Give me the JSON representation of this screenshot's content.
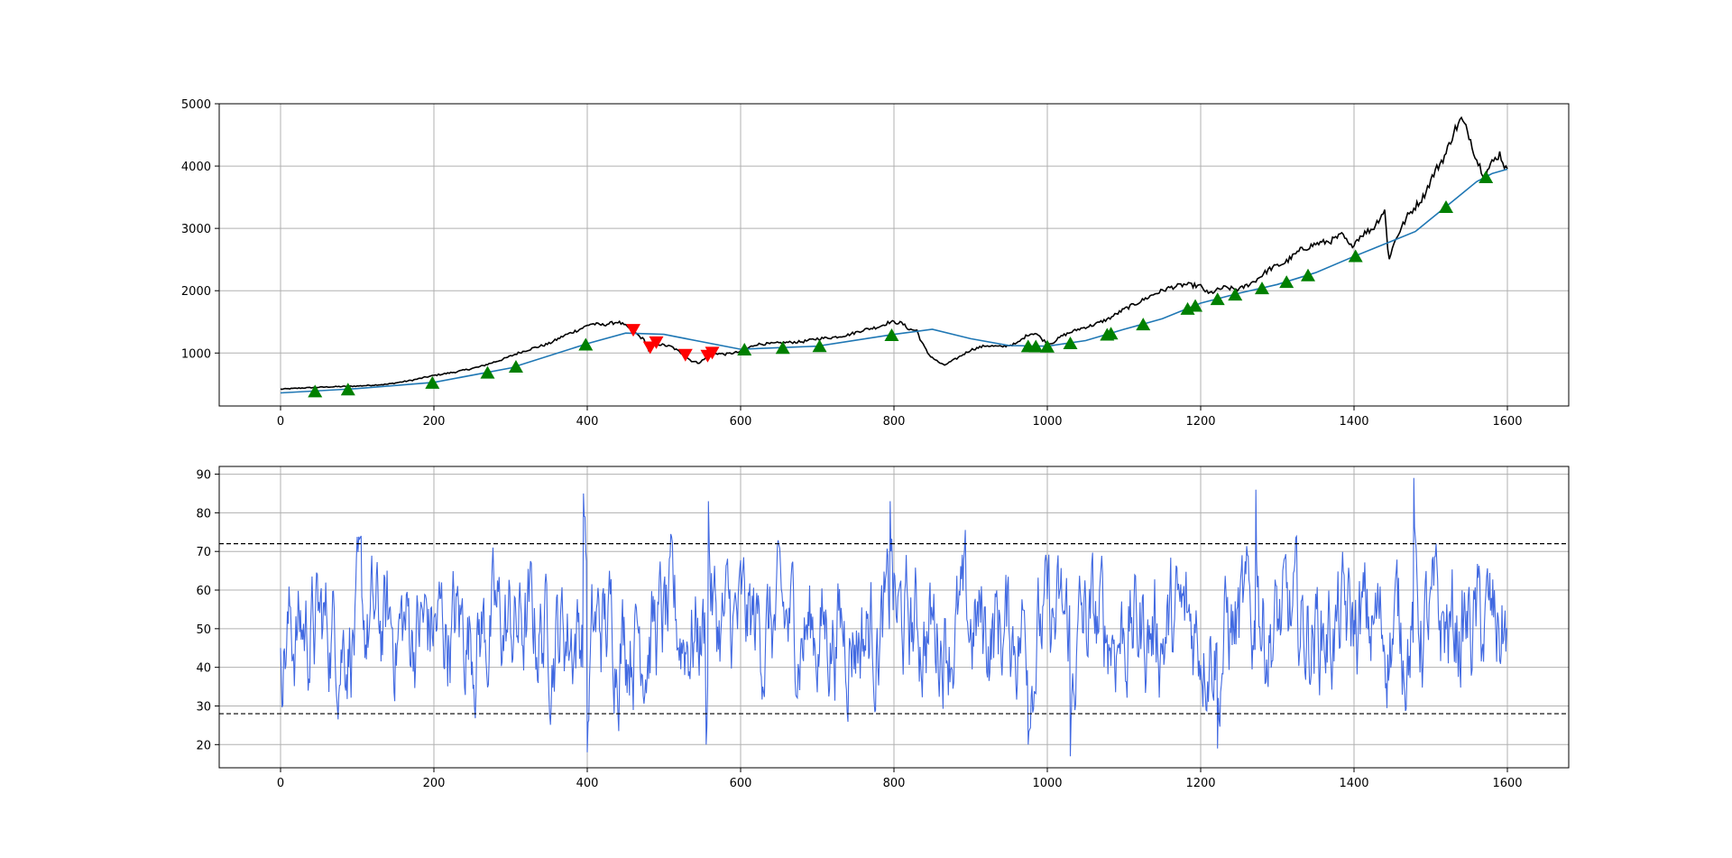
{
  "colors": {
    "price": "#000000",
    "moving_average": "#1f77b4",
    "buy_marker": "#008000",
    "sell_marker": "#ff0000",
    "rsi": "#4169e1",
    "threshold": "#000000",
    "grid": "#b0b0b0"
  },
  "chart_data": [
    {
      "type": "line",
      "title": "",
      "xlabel": "",
      "ylabel": "",
      "xlim": [
        -80,
        1680
      ],
      "ylim": [
        150,
        5000
      ],
      "x_ticks": [
        0,
        200,
        400,
        600,
        800,
        1000,
        1200,
        1400,
        1600
      ],
      "y_ticks": [
        1000,
        2000,
        3000,
        4000,
        5000
      ],
      "grid": true,
      "series": [
        {
          "role": "price",
          "style": "black line",
          "points": [
            [
              0,
              420
            ],
            [
              30,
              440
            ],
            [
              60,
              455
            ],
            [
              100,
              470
            ],
            [
              140,
              500
            ],
            [
              170,
              560
            ],
            [
              200,
              640
            ],
            [
              230,
              700
            ],
            [
              260,
              780
            ],
            [
              290,
              900
            ],
            [
              310,
              1000
            ],
            [
              330,
              1080
            ],
            [
              350,
              1150
            ],
            [
              370,
              1280
            ],
            [
              390,
              1380
            ],
            [
              405,
              1470
            ],
            [
              420,
              1450
            ],
            [
              440,
              1500
            ],
            [
              455,
              1400
            ],
            [
              465,
              1300
            ],
            [
              475,
              1200
            ],
            [
              480,
              1050
            ],
            [
              490,
              1150
            ],
            [
              510,
              1100
            ],
            [
              525,
              980
            ],
            [
              535,
              880
            ],
            [
              545,
              840
            ],
            [
              555,
              920
            ],
            [
              565,
              1000
            ],
            [
              580,
              980
            ],
            [
              600,
              1020
            ],
            [
              620,
              1140
            ],
            [
              640,
              1150
            ],
            [
              660,
              1170
            ],
            [
              680,
              1180
            ],
            [
              700,
              1230
            ],
            [
              720,
              1250
            ],
            [
              740,
              1290
            ],
            [
              760,
              1370
            ],
            [
              780,
              1420
            ],
            [
              795,
              1500
            ],
            [
              810,
              1480
            ],
            [
              820,
              1380
            ],
            [
              830,
              1360
            ],
            [
              835,
              1200
            ],
            [
              845,
              980
            ],
            [
              855,
              880
            ],
            [
              865,
              800
            ],
            [
              880,
              900
            ],
            [
              900,
              1050
            ],
            [
              920,
              1120
            ],
            [
              940,
              1100
            ],
            [
              960,
              1150
            ],
            [
              975,
              1300
            ],
            [
              985,
              1320
            ],
            [
              995,
              1200
            ],
            [
              1005,
              1150
            ],
            [
              1020,
              1280
            ],
            [
              1040,
              1380
            ],
            [
              1060,
              1450
            ],
            [
              1080,
              1550
            ],
            [
              1100,
              1700
            ],
            [
              1120,
              1820
            ],
            [
              1140,
              1950
            ],
            [
              1160,
              2050
            ],
            [
              1180,
              2100
            ],
            [
              1200,
              2070
            ],
            [
              1210,
              1950
            ],
            [
              1230,
              2050
            ],
            [
              1250,
              2020
            ],
            [
              1270,
              2150
            ],
            [
              1290,
              2350
            ],
            [
              1310,
              2450
            ],
            [
              1330,
              2650
            ],
            [
              1350,
              2750
            ],
            [
              1370,
              2800
            ],
            [
              1385,
              2900
            ],
            [
              1395,
              2700
            ],
            [
              1410,
              2900
            ],
            [
              1425,
              3000
            ],
            [
              1440,
              3300
            ],
            [
              1445,
              2500
            ],
            [
              1455,
              2850
            ],
            [
              1470,
              3200
            ],
            [
              1490,
              3500
            ],
            [
              1505,
              3900
            ],
            [
              1520,
              4200
            ],
            [
              1530,
              4550
            ],
            [
              1540,
              4750
            ],
            [
              1550,
              4500
            ],
            [
              1560,
              4100
            ],
            [
              1570,
              3850
            ],
            [
              1580,
              4050
            ],
            [
              1590,
              4200
            ],
            [
              1600,
              3900
            ]
          ]
        },
        {
          "role": "moving_average",
          "style": "blue line",
          "points": [
            [
              0,
              360
            ],
            [
              100,
              430
            ],
            [
              200,
              530
            ],
            [
              300,
              760
            ],
            [
              400,
              1150
            ],
            [
              450,
              1320
            ],
            [
              500,
              1300
            ],
            [
              550,
              1180
            ],
            [
              600,
              1060
            ],
            [
              700,
              1110
            ],
            [
              800,
              1300
            ],
            [
              850,
              1380
            ],
            [
              900,
              1230
            ],
            [
              950,
              1120
            ],
            [
              1000,
              1110
            ],
            [
              1050,
              1200
            ],
            [
              1100,
              1380
            ],
            [
              1150,
              1550
            ],
            [
              1200,
              1800
            ],
            [
              1250,
              1960
            ],
            [
              1300,
              2100
            ],
            [
              1350,
              2290
            ],
            [
              1400,
              2550
            ],
            [
              1450,
              2800
            ],
            [
              1480,
              2950
            ],
            [
              1500,
              3150
            ],
            [
              1530,
              3450
            ],
            [
              1560,
              3750
            ],
            [
              1580,
              3880
            ],
            [
              1600,
              3950
            ]
          ]
        }
      ],
      "buy_signals_x": [
        45,
        88,
        198,
        270,
        307,
        398,
        605,
        655,
        703,
        797,
        975,
        985,
        1000,
        1030,
        1078,
        1083,
        1125,
        1183,
        1193,
        1222,
        1245,
        1280,
        1312,
        1340,
        1402,
        1520,
        1572
      ],
      "sell_signals_x": [
        460,
        482,
        490,
        528,
        557,
        563
      ]
    },
    {
      "type": "line",
      "title": "",
      "xlabel": "",
      "ylabel": "",
      "xlim": [
        -80,
        1680
      ],
      "ylim": [
        14,
        92
      ],
      "x_ticks": [
        0,
        200,
        400,
        600,
        800,
        1000,
        1200,
        1400,
        1600
      ],
      "y_ticks": [
        20,
        30,
        40,
        50,
        60,
        70,
        80,
        90
      ],
      "grid": true,
      "thresholds": [
        72,
        28
      ],
      "series": [
        {
          "role": "rsi",
          "style": "blue oscillating line, values roughly between 17 and 89, centred near 50",
          "n": 1600,
          "min": 17,
          "max": 89,
          "notable_peaks": [
            [
              395,
              85
            ],
            [
              1272,
              86
            ],
            [
              1478,
              89
            ],
            [
              795,
              83
            ],
            [
              558,
              83
            ]
          ],
          "notable_troughs": [
            [
              400,
              18
            ],
            [
              1030,
              17
            ],
            [
              555,
              20
            ],
            [
              975,
              20
            ],
            [
              1222,
              19
            ]
          ]
        }
      ]
    }
  ]
}
